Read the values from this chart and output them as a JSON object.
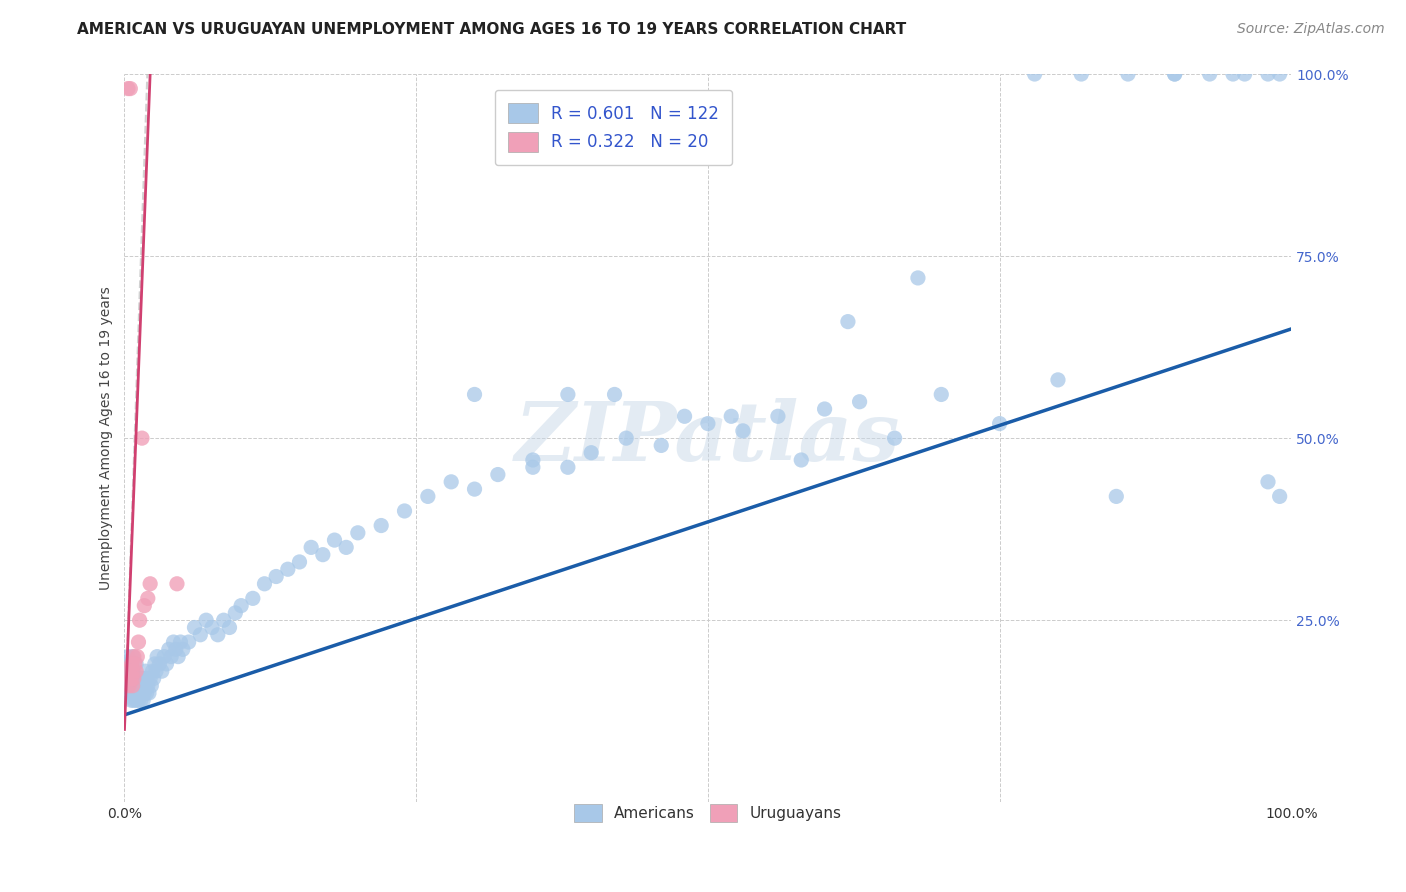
{
  "title": "AMERICAN VS URUGUAYAN UNEMPLOYMENT AMONG AGES 16 TO 19 YEARS CORRELATION CHART",
  "source": "Source: ZipAtlas.com",
  "ylabel": "Unemployment Among Ages 16 to 19 years",
  "xlim": [
    0.0,
    1.0
  ],
  "ylim": [
    0.0,
    1.0
  ],
  "xtick_positions": [
    0.0,
    0.25,
    0.5,
    0.75,
    1.0
  ],
  "xticklabels": [
    "0.0%",
    "",
    "",
    "",
    "100.0%"
  ],
  "ytick_positions": [
    0.0,
    0.25,
    0.5,
    0.75,
    1.0
  ],
  "yticklabels": [
    "",
    "25.0%",
    "50.0%",
    "75.0%",
    "100.0%"
  ],
  "background_color": "#ffffff",
  "grid_color": "#cccccc",
  "watermark_text": "ZIPatlas",
  "legend_R1": "0.601",
  "legend_N1": "122",
  "legend_R2": "0.322",
  "legend_N2": "20",
  "blue_scatter_color": "#a8c8e8",
  "pink_scatter_color": "#f0a0b8",
  "blue_line_color": "#1a5ca8",
  "pink_line_color": "#d04070",
  "title_fontsize": 11,
  "tick_fontsize": 10,
  "ylabel_fontsize": 10,
  "source_fontsize": 10,
  "legend_fontsize": 12,
  "americans_x": [
    0.002,
    0.003,
    0.003,
    0.004,
    0.004,
    0.005,
    0.005,
    0.005,
    0.006,
    0.006,
    0.006,
    0.007,
    0.007,
    0.007,
    0.008,
    0.008,
    0.008,
    0.009,
    0.009,
    0.01,
    0.01,
    0.01,
    0.011,
    0.011,
    0.012,
    0.012,
    0.013,
    0.013,
    0.014,
    0.014,
    0.015,
    0.015,
    0.016,
    0.016,
    0.017,
    0.017,
    0.018,
    0.018,
    0.019,
    0.019,
    0.02,
    0.021,
    0.022,
    0.023,
    0.024,
    0.025,
    0.026,
    0.027,
    0.028,
    0.03,
    0.032,
    0.034,
    0.036,
    0.038,
    0.04,
    0.042,
    0.044,
    0.046,
    0.048,
    0.05,
    0.055,
    0.06,
    0.065,
    0.07,
    0.075,
    0.08,
    0.085,
    0.09,
    0.095,
    0.1,
    0.11,
    0.12,
    0.13,
    0.14,
    0.15,
    0.16,
    0.17,
    0.18,
    0.19,
    0.2,
    0.22,
    0.24,
    0.26,
    0.28,
    0.3,
    0.32,
    0.35,
    0.38,
    0.4,
    0.43,
    0.46,
    0.5,
    0.53,
    0.56,
    0.6,
    0.63,
    0.66,
    0.7,
    0.75,
    0.8,
    0.85,
    0.9,
    0.95,
    0.98,
    0.78,
    0.82,
    0.86,
    0.9,
    0.93,
    0.96,
    0.99,
    0.99,
    0.98,
    0.3,
    0.35,
    0.38,
    0.42,
    0.48,
    0.52,
    0.58,
    0.62,
    0.68
  ],
  "americans_y": [
    0.18,
    0.2,
    0.16,
    0.17,
    0.19,
    0.15,
    0.17,
    0.18,
    0.14,
    0.16,
    0.19,
    0.15,
    0.17,
    0.2,
    0.14,
    0.16,
    0.18,
    0.15,
    0.17,
    0.14,
    0.16,
    0.19,
    0.15,
    0.17,
    0.14,
    0.16,
    0.15,
    0.17,
    0.14,
    0.16,
    0.15,
    0.17,
    0.14,
    0.16,
    0.15,
    0.17,
    0.16,
    0.18,
    0.15,
    0.17,
    0.16,
    0.15,
    0.17,
    0.16,
    0.18,
    0.17,
    0.19,
    0.18,
    0.2,
    0.19,
    0.18,
    0.2,
    0.19,
    0.21,
    0.2,
    0.22,
    0.21,
    0.2,
    0.22,
    0.21,
    0.22,
    0.24,
    0.23,
    0.25,
    0.24,
    0.23,
    0.25,
    0.24,
    0.26,
    0.27,
    0.28,
    0.3,
    0.31,
    0.32,
    0.33,
    0.35,
    0.34,
    0.36,
    0.35,
    0.37,
    0.38,
    0.4,
    0.42,
    0.44,
    0.43,
    0.45,
    0.47,
    0.46,
    0.48,
    0.5,
    0.49,
    0.52,
    0.51,
    0.53,
    0.54,
    0.55,
    0.5,
    0.56,
    0.52,
    0.58,
    0.42,
    1.0,
    1.0,
    1.0,
    1.0,
    1.0,
    1.0,
    1.0,
    1.0,
    1.0,
    1.0,
    0.42,
    0.44,
    0.56,
    0.46,
    0.56,
    0.56,
    0.53,
    0.53,
    0.47,
    0.66,
    0.72
  ],
  "uruguayans_x": [
    0.002,
    0.003,
    0.004,
    0.005,
    0.006,
    0.006,
    0.007,
    0.007,
    0.008,
    0.008,
    0.009,
    0.01,
    0.011,
    0.012,
    0.013,
    0.015,
    0.017,
    0.02,
    0.022,
    0.045
  ],
  "uruguayans_y": [
    0.18,
    0.98,
    0.16,
    0.98,
    0.19,
    0.17,
    0.18,
    0.16,
    0.2,
    0.17,
    0.19,
    0.18,
    0.2,
    0.22,
    0.25,
    0.5,
    0.27,
    0.28,
    0.3,
    0.3
  ],
  "blue_line_x": [
    0.0,
    1.0
  ],
  "blue_line_y": [
    0.12,
    0.65
  ],
  "pink_line_x": [
    0.0,
    0.022
  ],
  "pink_line_y": [
    0.1,
    1.0
  ]
}
